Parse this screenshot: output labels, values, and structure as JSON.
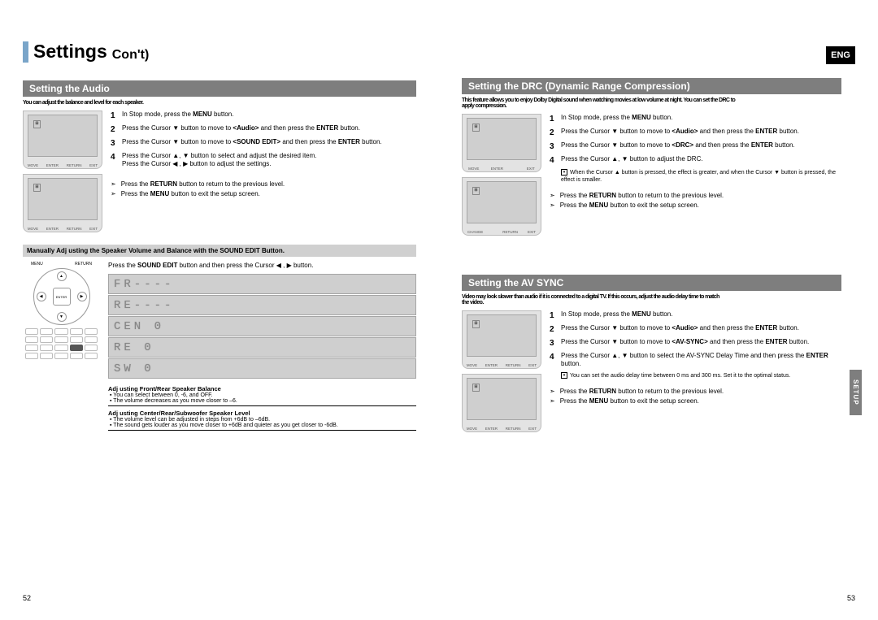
{
  "colors": {
    "accent": "#7aa5c9",
    "gray_bar": "#7e7e7e",
    "screen_bg": "#d0d0d0",
    "page_bg": "#ffffff",
    "text": "#000000"
  },
  "page": {
    "title_main": "Settings",
    "title_sub": "Con't)",
    "eng": "ENG",
    "left_num": "52",
    "right_num": "53",
    "side_tab": "SETUP"
  },
  "audio": {
    "heading": "Setting the Audio",
    "intro": "You can adjust the balance and level for each speaker.",
    "tv_buttons": [
      "MOVE",
      "ENTER",
      "RETURN",
      "EXIT"
    ],
    "steps": [
      "In Stop mode, press the <b>MENU</b> button.",
      "Press the Cursor ▼ button to move to <b>&lt;Audio&gt;</b> and then press the <b>ENTER</b> button.",
      "Press the Cursor ▼ button to move to <b>&lt;SOUND EDIT&gt;</b> and then press the <b>ENTER</b> button.",
      "Press the Cursor ▲, ▼ button to select and adjust the desired item."
    ],
    "step4_line2": "Press the Cursor ◀ , ▶ button to adjust the settings.",
    "returns": [
      "Press the <b>RETURN</b> button to return to the previous level.",
      "Press the <b>MENU</b> button to exit the setup screen."
    ],
    "note_bar": "Manually Adj usting the Speaker Volume and Balance with the SOUND EDIT Button.",
    "sound_edit_line": "Press the <b>SOUND EDIT</b> button and then press the Cursor ◀ , ▶ button.",
    "remote": {
      "menu": "MENU",
      "return": "RETURN",
      "enter": "ENTER"
    },
    "segments": [
      "FR----",
      "RE----",
      "CEN 0",
      "RE  0",
      "SW  0"
    ],
    "adj": {
      "t1": "Adj usting Front/Rear Speaker Balance",
      "b1a": "▪ You can select between 0, -6, and OFF.",
      "b1b": "▪ The volume decreases as you move closer to –6.",
      "t2": "Adj usting Center/Rear/Subwoofer Speaker Level",
      "b2a": "▪ The volume level can be adjusted in steps from +6dB to –6dB.",
      "b2b": "▪ The sound gets louder as you move closer to +6dB and quieter as you get closer to -6dB."
    }
  },
  "drc": {
    "heading": "Setting the DRC (Dynamic Range Compression)",
    "intro": "This feature allows you to enjoy Dolby Digital sound when watching movies at low volume at night. You can set the DRC to",
    "intro2": "apply compression.",
    "tv_buttons1": [
      "MOVE",
      "ENTER",
      "",
      "EXIT"
    ],
    "tv_buttons2": [
      "CHANGE",
      "",
      "RETURN",
      "EXIT"
    ],
    "steps": [
      "In Stop mode, press the <b>MENU</b> button.",
      "Press the Cursor ▼ button to move to <b>&lt;Audio&gt;</b> and then press the <b>ENTER</b> button.",
      "Press the Cursor ▼ button to move to <b>&lt;DRC&gt;</b> and then press the <b>ENTER</b> button.",
      "Press the Cursor ▲, ▼ button to adjust the DRC."
    ],
    "note": "When the Cursor ▲ button is pressed, the effect is greater, and when the Cursor ▼ button is pressed, the effect is smaller.",
    "returns": [
      "Press the <b>RETURN</b> button to return to the previous level.",
      "Press the <b>MENU</b> button to exit the setup screen."
    ]
  },
  "avsync": {
    "heading": "Setting the AV SYNC",
    "intro": "Video may look slower than audio if it is connected to a digital TV. If this occurs, adjust the audio delay time to match",
    "intro2": "the video.",
    "steps": [
      "In Stop mode, press the <b>MENU</b> button.",
      "Press the Cursor ▼ button to move to <b>&lt;Audio&gt;</b> and then press the <b>ENTER</b> button.",
      "Press the Cursor ▼ button to move to <b>&lt;AV-SYNC&gt;</b> and then press the <b>ENTER</b> button.",
      "Press the Cursor ▲, ▼ button to select the AV-SYNC Delay Time  and then press the <b>ENTER</b> button."
    ],
    "note": "You can set the audio delay time between 0 ms and 300 ms. Set it to the optimal status.",
    "returns": [
      "Press the <b>RETURN</b> button to return to the previous level.",
      "Press the <b>MENU</b> button to exit the setup screen."
    ]
  }
}
